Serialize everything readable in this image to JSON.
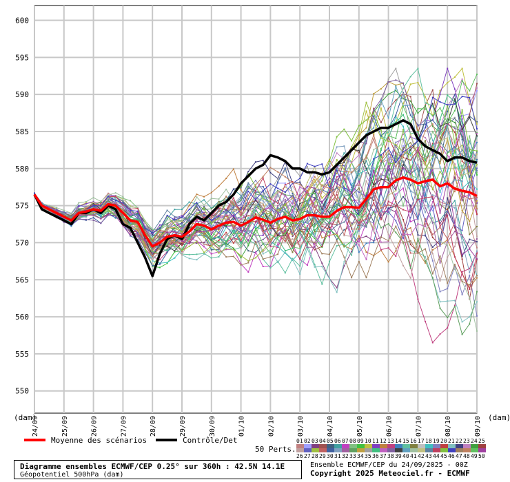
{
  "chart_data": {
    "type": "line",
    "y_unit_left": "(dam)",
    "y_unit_right": "(dam)",
    "ylim": [
      547,
      602
    ],
    "yticks": [
      550,
      555,
      560,
      565,
      570,
      575,
      580,
      585,
      590,
      595,
      600
    ],
    "x_range_hours": [
      0,
      360
    ],
    "x_ticks": [
      {
        "label": "24/09",
        "h": 0
      },
      {
        "label": "25/09",
        "h": 24
      },
      {
        "label": "26/09",
        "h": 48
      },
      {
        "label": "27/09",
        "h": 72
      },
      {
        "label": "28/09",
        "h": 96
      },
      {
        "label": "29/09",
        "h": 120
      },
      {
        "label": "30/09",
        "h": 144
      },
      {
        "label": "01/10",
        "h": 168
      },
      {
        "label": "02/10",
        "h": 192
      },
      {
        "label": "03/10",
        "h": 216
      },
      {
        "label": "04/10",
        "h": 240
      },
      {
        "label": "05/10",
        "h": 264
      },
      {
        "label": "06/10",
        "h": 288
      },
      {
        "label": "07/10",
        "h": 312
      },
      {
        "label": "08/10",
        "h": 336
      },
      {
        "label": "09/10",
        "h": 360
      }
    ],
    "grid": true,
    "series": [
      {
        "name": "Moyenne des scénarios",
        "color": "#ff0000",
        "x": [
          0,
          6,
          12,
          18,
          24,
          30,
          36,
          42,
          48,
          54,
          60,
          66,
          72,
          78,
          84,
          90,
          96,
          102,
          108,
          114,
          120,
          126,
          132,
          138,
          144,
          150,
          156,
          162,
          168,
          174,
          180,
          186,
          192,
          198,
          204,
          210,
          216,
          222,
          228,
          234,
          240,
          246,
          252,
          258,
          264,
          270,
          276,
          282,
          288,
          294,
          300,
          306,
          312,
          318,
          324,
          330,
          336,
          342,
          348,
          354,
          360
        ],
        "y": [
          576.5,
          575.0,
          574.5,
          574.0,
          573.5,
          573.0,
          574.0,
          574.2,
          574.5,
          574.3,
          575.2,
          575.0,
          574.0,
          573.0,
          572.8,
          571.0,
          569.5,
          570.0,
          570.8,
          571.0,
          570.8,
          571.5,
          572.5,
          572.3,
          571.8,
          572.3,
          572.7,
          572.8,
          572.3,
          572.8,
          573.4,
          573.1,
          572.7,
          573.2,
          573.5,
          573.0,
          573.2,
          573.7,
          573.7,
          573.5,
          573.5,
          574.3,
          574.8,
          574.8,
          574.7,
          575.9,
          577.2,
          577.5,
          577.5,
          578.4,
          578.8,
          578.5,
          578.0,
          578.3,
          578.5,
          577.6,
          578.0,
          577.3,
          577.0,
          576.8,
          576.3
        ]
      },
      {
        "name": "Contrôle/Det",
        "color": "#000000",
        "x": [
          0,
          6,
          12,
          18,
          24,
          30,
          36,
          42,
          48,
          54,
          60,
          66,
          72,
          78,
          84,
          90,
          96,
          102,
          108,
          114,
          120,
          126,
          132,
          138,
          144,
          150,
          156,
          162,
          168,
          174,
          180,
          186,
          192,
          198,
          204,
          210,
          216,
          222,
          228,
          234,
          240,
          246,
          252,
          258,
          264,
          270,
          276,
          282,
          288,
          294,
          300,
          306,
          312,
          318,
          324,
          330,
          336,
          342,
          348,
          354,
          360
        ],
        "y": [
          576.5,
          574.5,
          574.0,
          573.5,
          573.0,
          572.5,
          574.0,
          574.0,
          574.5,
          574.0,
          575.0,
          574.5,
          572.5,
          572.0,
          570.0,
          568.0,
          565.5,
          568.5,
          570.5,
          571.0,
          570.5,
          572.5,
          573.5,
          573.0,
          574.0,
          575.0,
          575.5,
          576.5,
          578.0,
          579.0,
          580.0,
          580.5,
          581.8,
          581.5,
          581.0,
          580.0,
          580.0,
          579.5,
          579.5,
          579.2,
          579.5,
          580.5,
          581.5,
          582.5,
          583.5,
          584.5,
          585.0,
          585.5,
          585.5,
          586.0,
          586.5,
          586.0,
          584.0,
          583.0,
          582.5,
          582.0,
          581.0,
          581.5,
          581.5,
          581.0,
          580.8
        ]
      }
    ],
    "perturbations_count": 50
  },
  "legend": {
    "mean_label": "Moyenne des scénarios",
    "control_label": "Contrôle/Det",
    "perts_label": "50 Perts.",
    "numbers_row1": [
      "01",
      "02",
      "03",
      "04",
      "05",
      "06",
      "07",
      "08",
      "09",
      "10",
      "11",
      "12",
      "13",
      "14",
      "15",
      "16",
      "17",
      "18",
      "19",
      "20",
      "21",
      "22",
      "23",
      "24",
      "25"
    ],
    "numbers_row2": [
      "26",
      "27",
      "28",
      "29",
      "30",
      "31",
      "32",
      "33",
      "34",
      "35",
      "36",
      "37",
      "38",
      "39",
      "40",
      "41",
      "42",
      "43",
      "44",
      "45",
      "46",
      "47",
      "48",
      "49",
      "50"
    ],
    "swatch_colors": [
      "#c08080",
      "#a0a0ff",
      "#804080",
      "#a05050",
      "#406080",
      "#40a0a0",
      "#c040c0",
      "#80c080",
      "#40c040",
      "#c0c040",
      "#8040c0",
      "#c08040",
      "#c04080",
      "#4080c0",
      "#60c0a0",
      "#808040",
      "#c0c0c0",
      "#40c0c0",
      "#8080c0",
      "#c04040",
      "#80c0c0",
      "#404080",
      "#c080c0",
      "#40a040",
      "#a04040",
      "#c0a0a0",
      "#6060c0",
      "#a0c040",
      "#c06060",
      "#4060a0",
      "#80a0c0",
      "#a060a0",
      "#60a060",
      "#c0a040",
      "#a0a0a0",
      "#40c080",
      "#c060c0",
      "#8060a0",
      "#404040",
      "#60a0c0",
      "#a0c0a0",
      "#c0c080",
      "#6080a0",
      "#c04060",
      "#80c040",
      "#4040c0",
      "#a08060",
      "#c08060",
      "#60c060",
      "#a040a0"
    ]
  },
  "title": {
    "line1": "Diagramme ensembles ECMWF/CEP 0.25° sur 360h : 42.5N 14.1E",
    "line2": "Géopotentiel 500hPa (dam)"
  },
  "info": {
    "line1": "Ensemble ECMWF/CEP du 24/09/2025 - 00Z",
    "line2": "Copyright 2025 Meteociel.fr - ECMWF"
  }
}
